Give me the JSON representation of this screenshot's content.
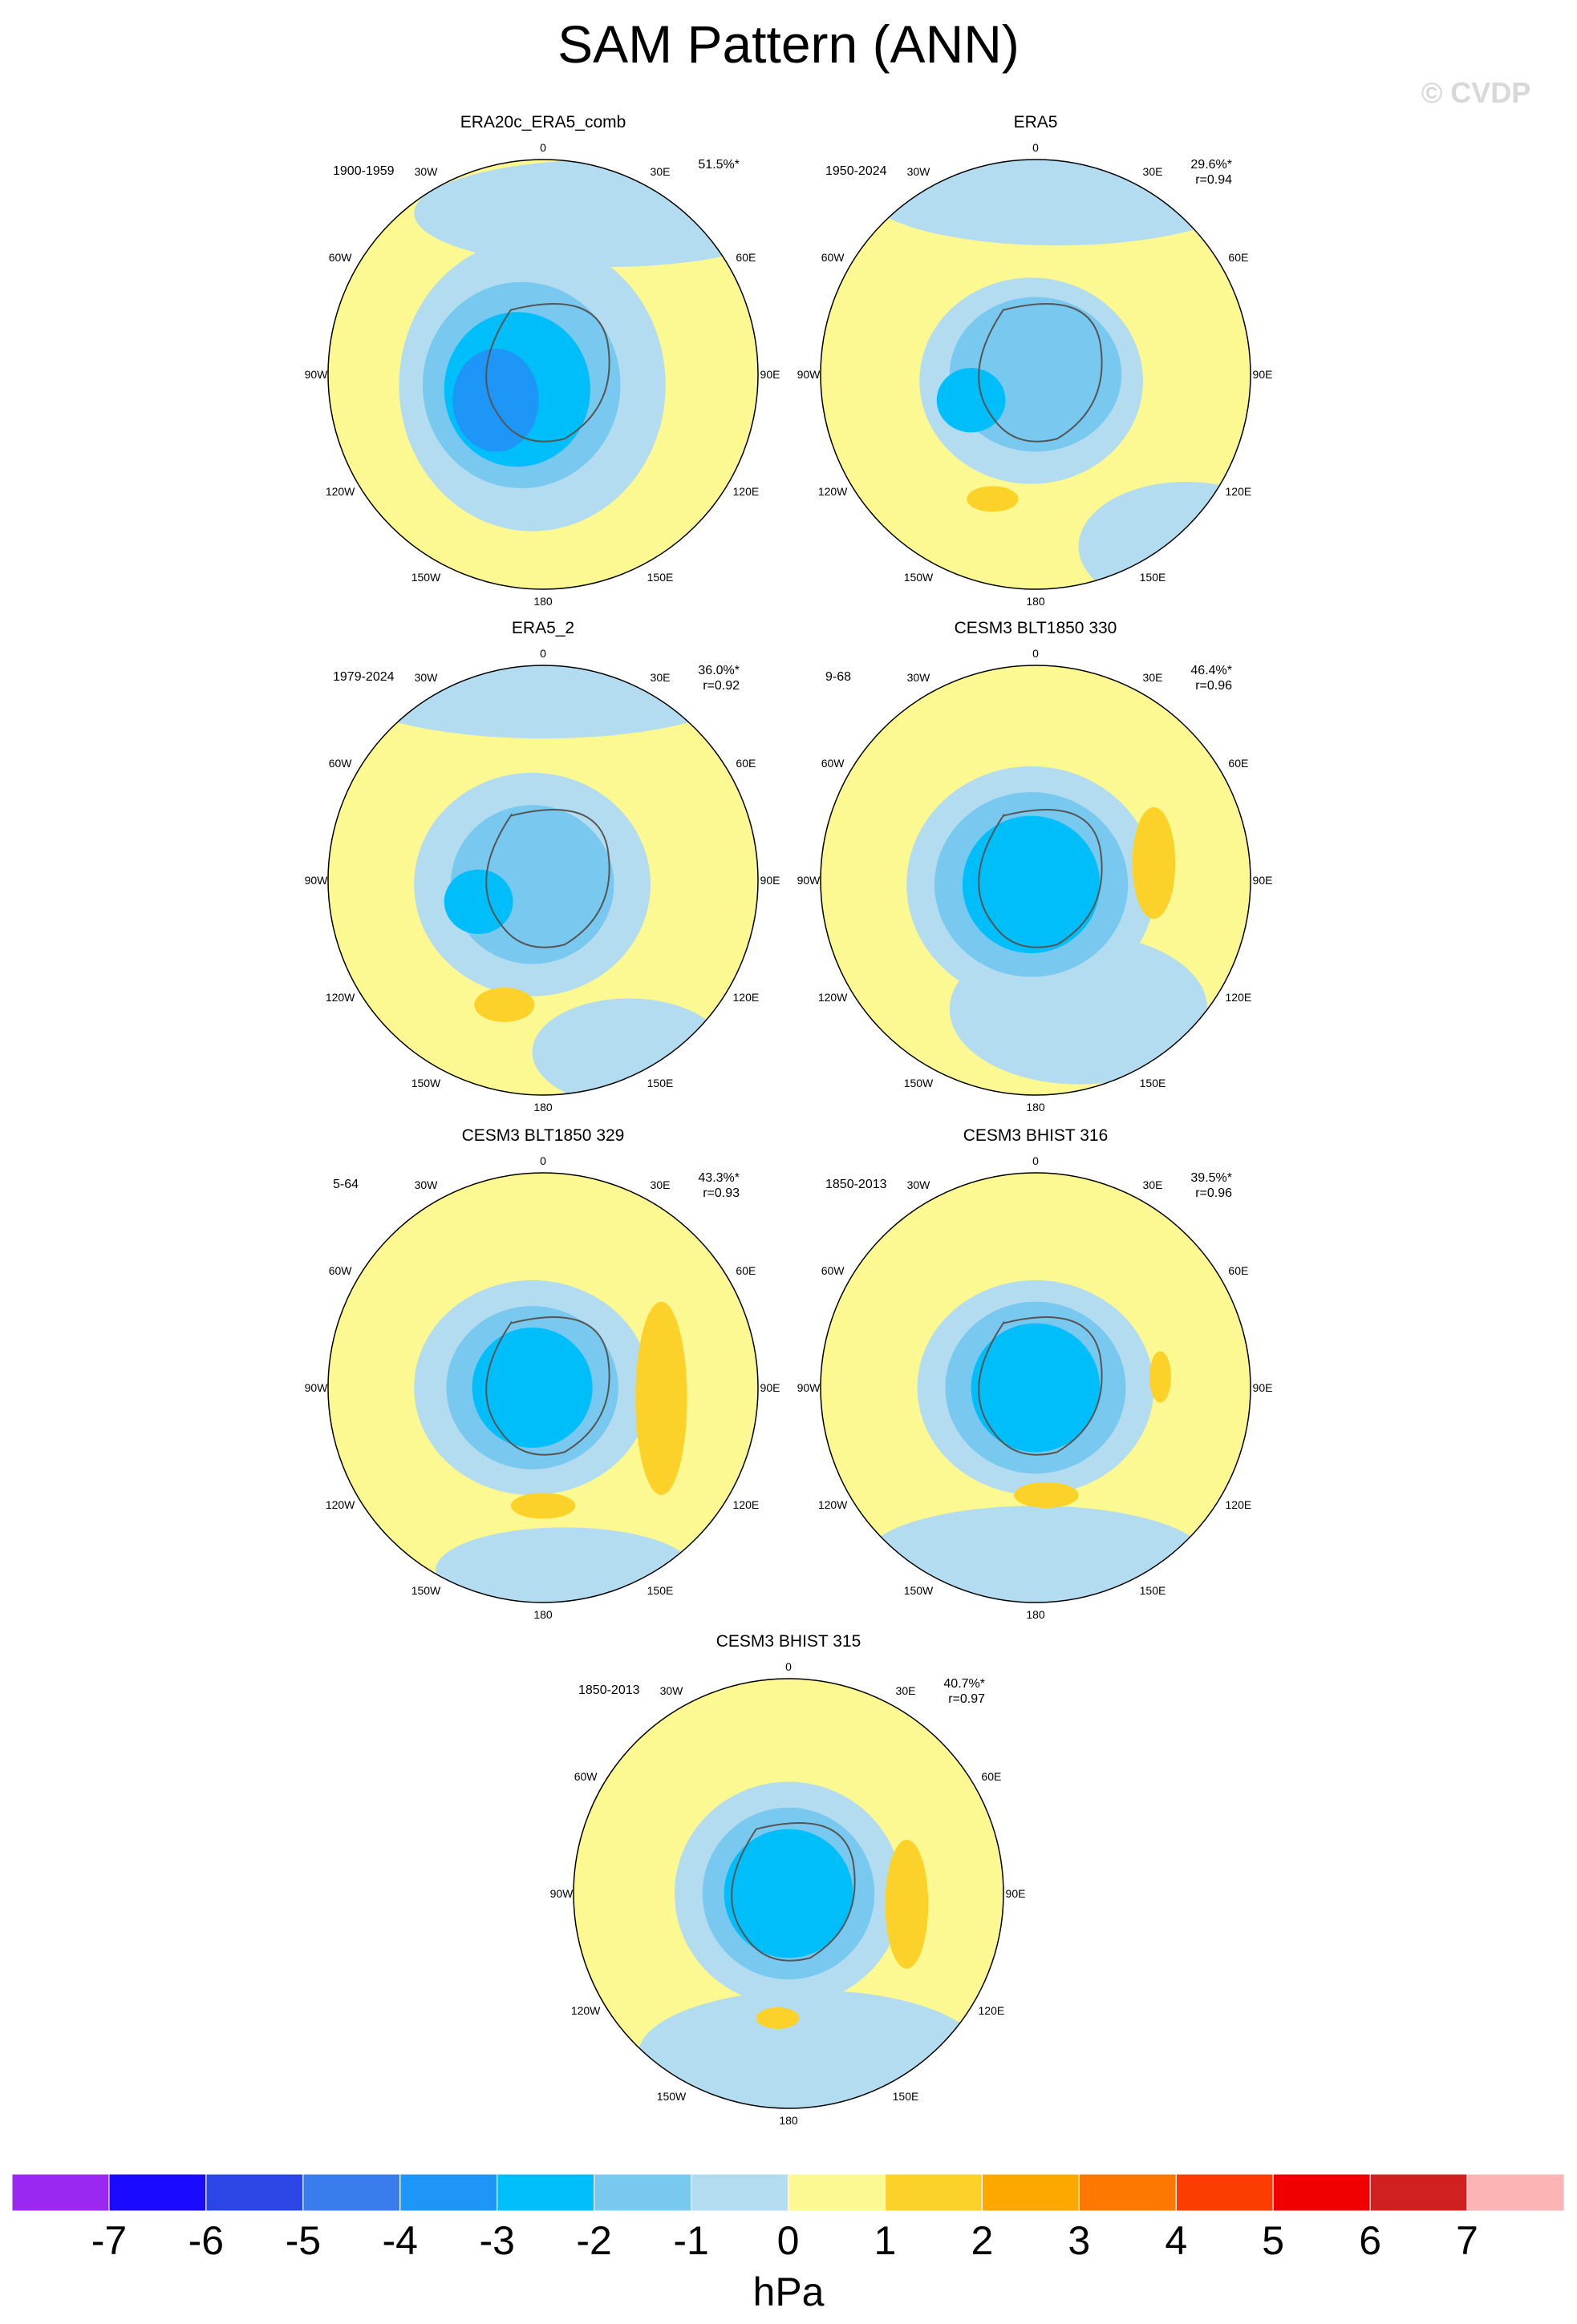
{
  "title": "SAM Pattern (ANN)",
  "watermark": "© CVDP",
  "lon_labels": [
    "0",
    "30E",
    "60E",
    "90E",
    "120E",
    "150E",
    "180",
    "150W",
    "120W",
    "90W",
    "60W",
    "30W"
  ],
  "panels": [
    {
      "title": "ERA20c_ERA5_comb",
      "period": "1900-1959",
      "pct": "51.5%*"
    },
    {
      "title": "ERA5",
      "period": "1950-2024",
      "pct": "29.6%*",
      "r": "r=0.94"
    },
    {
      "title": "ERA5_2",
      "period": "1979-2024",
      "pct": "36.0%*",
      "r": "r=0.92"
    },
    {
      "title": "CESM3 BLT1850 330",
      "period": "9-68",
      "pct": "46.4%*",
      "r": "r=0.96"
    },
    {
      "title": "CESM3 BLT1850 329",
      "period": "5-64",
      "pct": "43.3%*",
      "r": "r=0.93"
    },
    {
      "title": "CESM3 BHIST 316",
      "period": "1850-2013",
      "pct": "39.5%*",
      "r": "r=0.96"
    },
    {
      "title": "CESM3 BHIST 315",
      "period": "1850-2013",
      "pct": "40.7%*",
      "r": "r=0.97"
    }
  ],
  "colorbar": {
    "colors": [
      "#9a28f0",
      "#1a0aff",
      "#2c46e6",
      "#3a7cee",
      "#1e96f8",
      "#00befa",
      "#78c8f0",
      "#b4dcf0",
      "#fcf992",
      "#fcd22a",
      "#fca800",
      "#fc7800",
      "#fc3c00",
      "#f00000",
      "#d02020",
      "#fcb4b4"
    ],
    "ticks": [
      -7,
      -6,
      -5,
      -4,
      -3,
      -2,
      -1,
      0,
      1,
      2,
      3,
      4,
      5,
      6,
      7
    ],
    "unit": "hPa"
  }
}
